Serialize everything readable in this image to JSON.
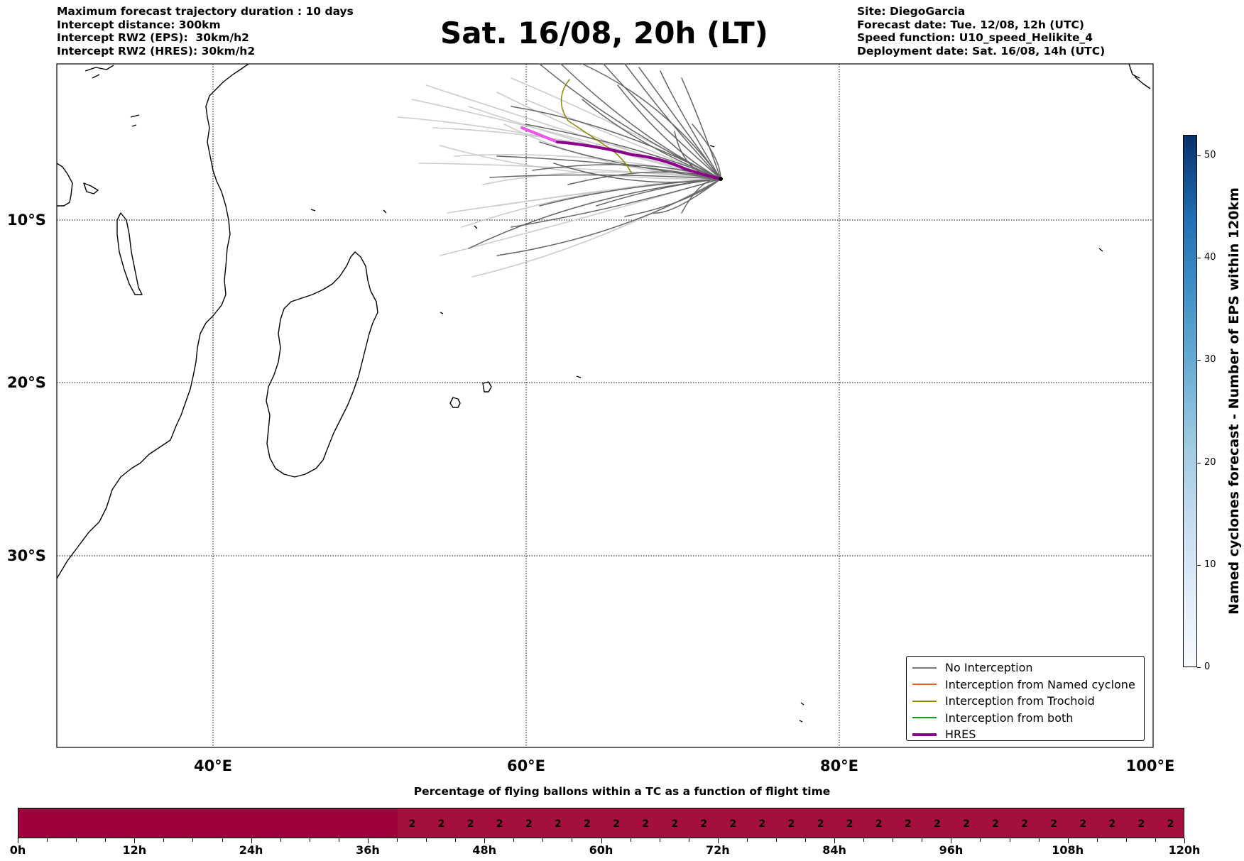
{
  "header": {
    "left": [
      "Maximum forecast trajectory duration : 10 days",
      "Intercept distance: 300km",
      "Intercept RW2 (EPS):  30km/h2",
      "Intercept RW2 (HRES): 30km/h2"
    ],
    "title": "Sat. 16/08, 20h (LT)",
    "right": [
      "Site: DiegoGarcia",
      "Forecast date: Tue. 12/08, 12h (UTC)",
      "Speed function: U10_speed_Helikite_4",
      "Deployment date: Sat. 16/08, 14h (UTC)"
    ]
  },
  "map": {
    "lon_range": [
      30,
      100
    ],
    "lat_range": [
      -42,
      2.5
    ],
    "lat_labels": [
      "10°S",
      "20°S",
      "30°S"
    ],
    "lon_labels": [
      "40°E",
      "60°E",
      "80°E",
      "100°E"
    ],
    "gridlines": "dotted"
  },
  "legend": {
    "items": [
      {
        "label": "No Interception",
        "color": "#777777"
      },
      {
        "label": "Interception from Named cyclone",
        "color": "#e06020"
      },
      {
        "label": "Interception from Trochoid",
        "color": "#8a8a00"
      },
      {
        "label": "Interception from both",
        "color": "#1a9a1a"
      },
      {
        "label": "HRES",
        "color": "#8b008b"
      }
    ]
  },
  "colorbar": {
    "label": "Named cyclones forecast - Number of EPS within 120km",
    "ticks": [
      "0",
      "10",
      "20",
      "30",
      "40",
      "50"
    ],
    "range": [
      0,
      52
    ]
  },
  "timebar": {
    "title": "Percentage of flying ballons within a TC as a function of flight time",
    "labels": [
      "0h",
      "12h",
      "24h",
      "36h",
      "48h",
      "60h",
      "72h",
      "84h",
      "96h",
      "108h",
      "120h"
    ],
    "cell_value": "2",
    "range_hours": [
      0,
      120
    ],
    "nonzero_from_hour": 39,
    "cell_step_hours": 3
  }
}
